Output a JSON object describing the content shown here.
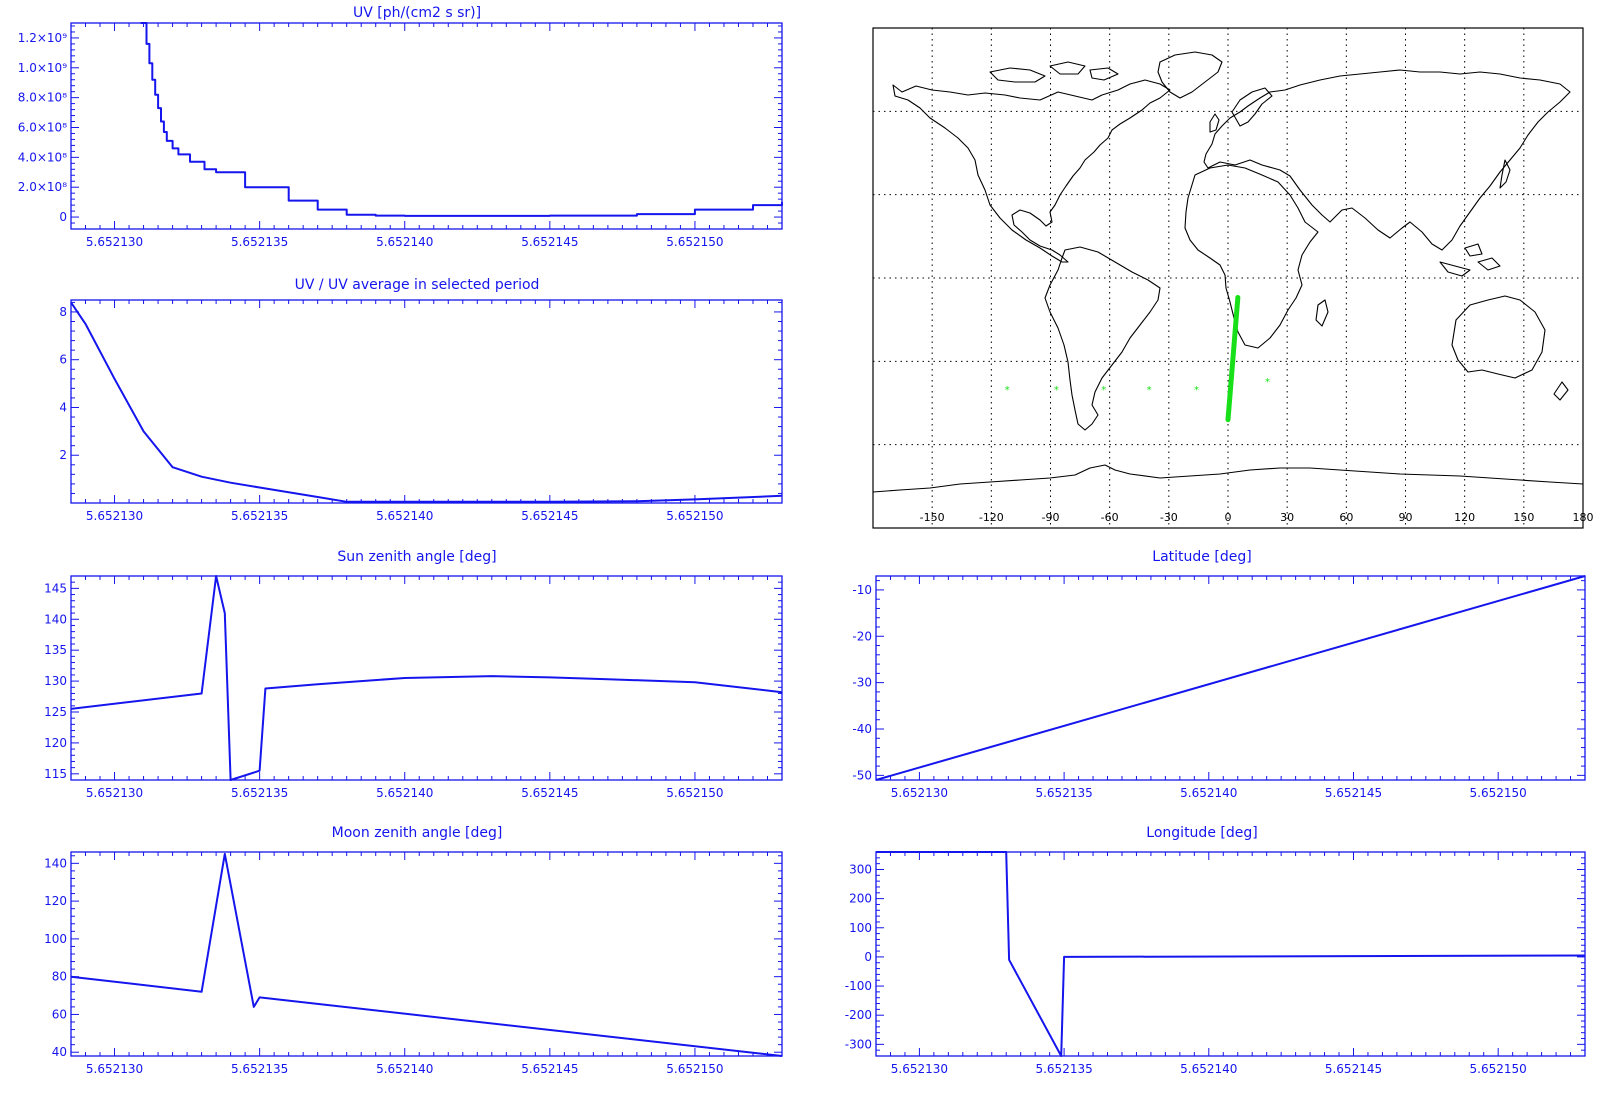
{
  "colors": {
    "plot": "#1515ee",
    "map_line": "#000000",
    "track": "#18e018",
    "grid": "#000000",
    "background": "#ffffff"
  },
  "chart_data": [
    {
      "id": "uv",
      "type": "line",
      "title": "UV [ph/(cm2 s sr)]",
      "xlabel": "",
      "ylabel": "",
      "xlim": [
        5.6521285,
        5.652153
      ],
      "ylim": [
        -80000000,
        1300000000
      ],
      "xticks": [
        5.65213,
        5.652135,
        5.65214,
        5.652145,
        5.65215
      ],
      "xtick_labels": [
        "5.652130",
        "5.652135",
        "5.652140",
        "5.652145",
        "5.652150"
      ],
      "yticks": [
        0,
        200000000,
        400000000,
        600000000,
        800000000,
        1000000000,
        1200000000
      ],
      "ytick_labels": [
        "0",
        "2.0×10⁸",
        "4.0×10⁸",
        "6.0×10⁸",
        "8.0×10⁸",
        "1.0×10⁹",
        "1.2×10⁹"
      ],
      "step": true,
      "x": [
        5.6521309,
        5.6521311,
        5.6521312,
        5.6521313,
        5.6521314,
        5.6521315,
        5.6521316,
        5.6521317,
        5.6521318,
        5.652132,
        5.6521322,
        5.6521326,
        5.6521331,
        5.6521335,
        5.6521345,
        5.652136,
        5.652137,
        5.652138,
        5.652139,
        5.65214,
        5.652145,
        5.652148,
        5.65215,
        5.652152,
        5.652153
      ],
      "y": [
        1300000000,
        1160000000,
        1030000000,
        920000000,
        820000000,
        730000000,
        640000000,
        570000000,
        510000000,
        460000000,
        420000000,
        370000000,
        320000000,
        300000000,
        200000000,
        110000000,
        50000000,
        15000000,
        10000000,
        8000000,
        10000000,
        20000000,
        50000000,
        80000000,
        100000000
      ]
    },
    {
      "id": "uv-ratio",
      "type": "line",
      "title": "UV / UV average in selected period",
      "xlabel": "",
      "ylabel": "",
      "xlim": [
        5.6521285,
        5.652153
      ],
      "ylim": [
        0,
        8.5
      ],
      "xticks": [
        5.65213,
        5.652135,
        5.65214,
        5.652145,
        5.65215
      ],
      "xtick_labels": [
        "5.652130",
        "5.652135",
        "5.652140",
        "5.652145",
        "5.652150"
      ],
      "yticks": [
        2,
        4,
        6,
        8
      ],
      "ytick_labels": [
        "2",
        "4",
        "6",
        "8"
      ],
      "x": [
        5.6521285,
        5.652129,
        5.65213,
        5.652131,
        5.652132,
        5.652133,
        5.652134,
        5.652135,
        5.652137,
        5.652138,
        5.65214,
        5.652145,
        5.652148,
        5.65215,
        5.652153
      ],
      "y": [
        8.4,
        7.5,
        5.2,
        3.0,
        1.5,
        1.1,
        0.85,
        0.65,
        0.25,
        0.05,
        0.05,
        0.05,
        0.07,
        0.15,
        0.3
      ]
    },
    {
      "id": "sun-zenith",
      "type": "line",
      "title": "Sun zenith angle [deg]",
      "xlabel": "",
      "ylabel": "",
      "xlim": [
        5.6521285,
        5.652153
      ],
      "ylim": [
        114,
        147
      ],
      "xticks": [
        5.65213,
        5.652135,
        5.65214,
        5.652145,
        5.65215
      ],
      "xtick_labels": [
        "5.652130",
        "5.652135",
        "5.652140",
        "5.652145",
        "5.652150"
      ],
      "yticks": [
        115,
        120,
        125,
        130,
        135,
        140,
        145
      ],
      "ytick_labels": [
        "115",
        "120",
        "125",
        "130",
        "135",
        "140",
        "145"
      ],
      "x": [
        5.6521285,
        5.652133,
        5.6521335,
        5.6521338,
        5.652134,
        5.652135,
        5.6521352,
        5.652137,
        5.65214,
        5.652143,
        5.652145,
        5.652147,
        5.65215,
        5.652153
      ],
      "y": [
        125.5,
        128.0,
        147.0,
        141.0,
        114.0,
        115.5,
        128.8,
        129.5,
        130.5,
        130.8,
        130.6,
        130.3,
        129.8,
        128.2
      ]
    },
    {
      "id": "latitude",
      "type": "line",
      "title": "Latitude [deg]",
      "xlabel": "",
      "ylabel": "",
      "xlim": [
        5.6521285,
        5.652153
      ],
      "ylim": [
        -51,
        -7
      ],
      "xticks": [
        5.65213,
        5.652135,
        5.65214,
        5.652145,
        5.65215
      ],
      "xtick_labels": [
        "5.652130",
        "5.652135",
        "5.652140",
        "5.652145",
        "5.652150"
      ],
      "yticks": [
        -50,
        -40,
        -30,
        -20,
        -10
      ],
      "ytick_labels": [
        "-50",
        "-40",
        "-30",
        "-20",
        "-10"
      ],
      "x": [
        5.6521285,
        5.652153
      ],
      "y": [
        -51,
        -7
      ]
    },
    {
      "id": "moon-zenith",
      "type": "line",
      "title": "Moon zenith angle [deg]",
      "xlabel": "",
      "ylabel": "",
      "xlim": [
        5.6521285,
        5.652153
      ],
      "ylim": [
        38,
        146
      ],
      "xticks": [
        5.65213,
        5.652135,
        5.65214,
        5.652145,
        5.65215
      ],
      "xtick_labels": [
        "5.652130",
        "5.652135",
        "5.652140",
        "5.652145",
        "5.652150"
      ],
      "yticks": [
        40,
        60,
        80,
        100,
        120,
        140
      ],
      "ytick_labels": [
        "40",
        "60",
        "80",
        "100",
        "120",
        "140"
      ],
      "x": [
        5.6521285,
        5.652133,
        5.6521338,
        5.6521348,
        5.652135,
        5.652153
      ],
      "y": [
        80,
        72,
        145,
        64,
        69,
        38
      ]
    },
    {
      "id": "longitude",
      "type": "line",
      "title": "Longitude [deg]",
      "xlabel": "",
      "ylabel": "",
      "xlim": [
        5.6521285,
        5.652153
      ],
      "ylim": [
        -340,
        360
      ],
      "xticks": [
        5.65213,
        5.652135,
        5.65214,
        5.652145,
        5.65215
      ],
      "xtick_labels": [
        "5.652130",
        "5.652135",
        "5.652140",
        "5.652145",
        "5.652150"
      ],
      "yticks": [
        -300,
        -200,
        -100,
        0,
        100,
        200,
        300
      ],
      "ytick_labels": [
        "-300",
        "-200",
        "-100",
        "0",
        "100",
        "200",
        "300"
      ],
      "x": [
        5.6521285,
        5.652133,
        5.6521331,
        5.6521349,
        5.652135,
        5.652153
      ],
      "y": [
        360,
        360,
        -10,
        -340,
        0,
        5
      ]
    },
    {
      "id": "world-map",
      "type": "scatter",
      "xlabel": "",
      "ylabel": "",
      "xlim": [
        -180,
        180
      ],
      "ylim": [
        -90,
        90
      ],
      "xticks": [
        -150,
        -120,
        -90,
        -60,
        -30,
        0,
        30,
        60,
        90,
        120,
        150,
        180
      ],
      "xtick_labels": [
        "-150",
        "-120",
        "-90",
        "-60",
        "-30",
        "0",
        "30",
        "60",
        "90",
        "120",
        "150",
        "180"
      ],
      "grid": true,
      "track": {
        "lon": [
          0,
          5
        ],
        "lat": [
          -51,
          -7
        ]
      },
      "markers": {
        "lon": [
          -112,
          -87,
          -63,
          -40,
          -16,
          20
        ],
        "lat": [
          -40,
          -40,
          -40,
          -40,
          -40,
          -37
        ]
      }
    }
  ]
}
